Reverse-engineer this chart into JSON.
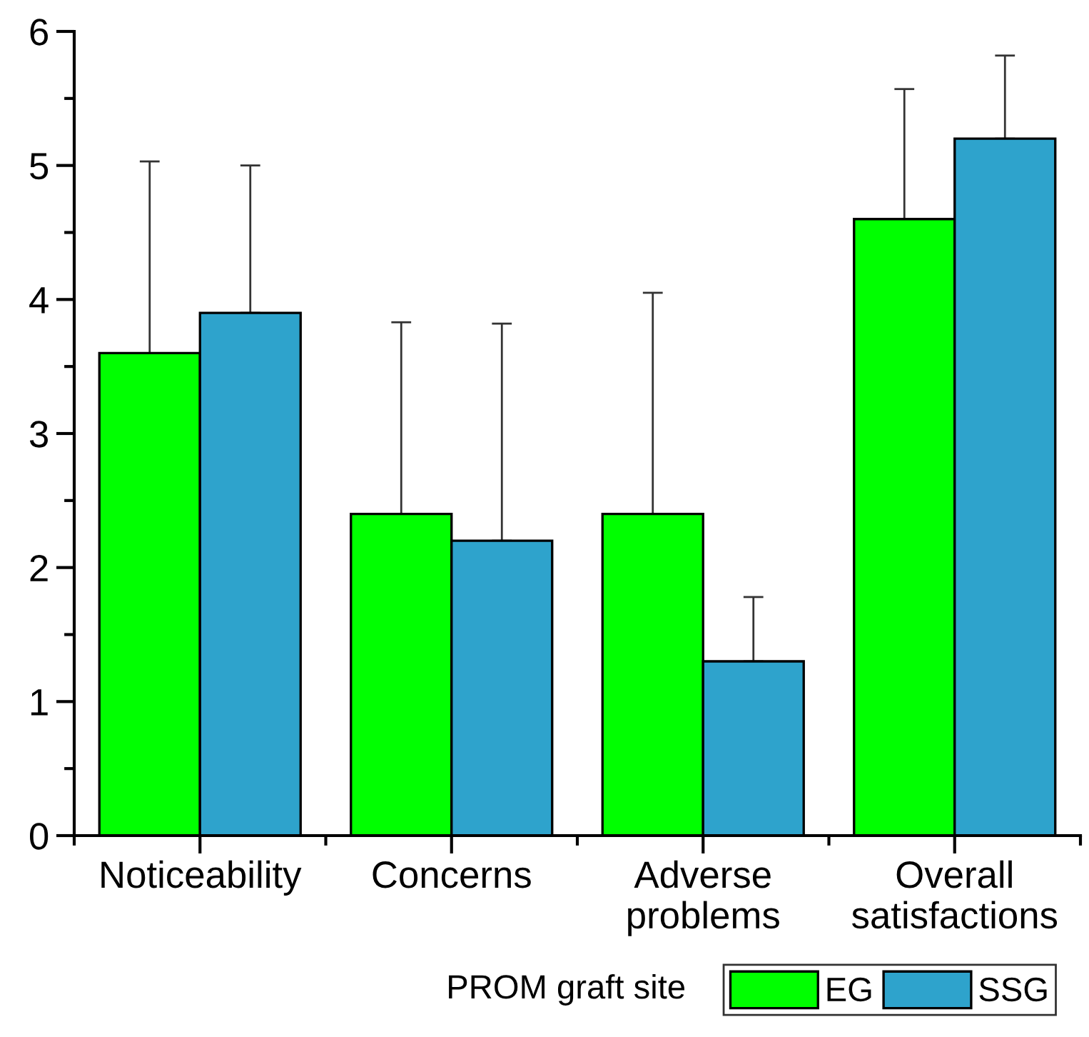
{
  "chart_data": {
    "type": "bar",
    "categories": [
      "Noticeability",
      "Concerns",
      "Adverse problems",
      "Overall satisfactions"
    ],
    "series": [
      {
        "name": "EG",
        "color": "#00ff00",
        "values": [
          3.6,
          2.4,
          2.4,
          4.6
        ],
        "errors": [
          [
            3.6,
            5.03
          ],
          [
            2.4,
            3.83
          ],
          [
            2.4,
            4.05
          ],
          [
            4.6,
            5.57
          ]
        ]
      },
      {
        "name": "SSG",
        "color": "#2ea3cc",
        "values": [
          3.9,
          2.2,
          1.3,
          5.2
        ],
        "errors": [
          [
            3.9,
            5.0
          ],
          [
            2.2,
            3.82
          ],
          [
            1.3,
            1.78
          ],
          [
            5.2,
            5.82
          ]
        ]
      }
    ],
    "ylim": [
      0,
      6
    ],
    "yticks": [
      0,
      1,
      2,
      3,
      4,
      5,
      6
    ],
    "legend_title": "PROM graft site",
    "legend": "bottom",
    "grid": false
  }
}
